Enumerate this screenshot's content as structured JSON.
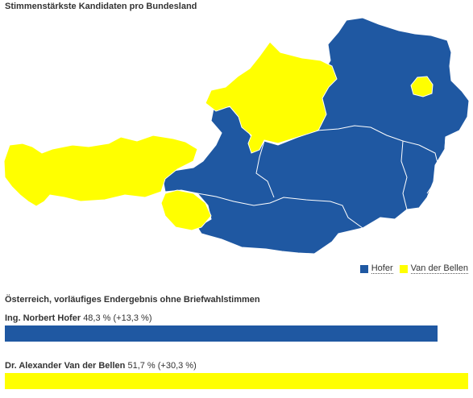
{
  "header": {
    "title": "Stimmenstärkste Kandidaten pro Bundesland"
  },
  "colors": {
    "hofer": "#1f58a2",
    "van_der_bellen": "#ffff00",
    "border": "#ffffff"
  },
  "map": {
    "regions": [
      {
        "name": "Vorarlberg",
        "winner": "van_der_bellen"
      },
      {
        "name": "Tirol",
        "winner": "van_der_bellen"
      },
      {
        "name": "Osttirol",
        "winner": "van_der_bellen"
      },
      {
        "name": "Salzburg",
        "winner": "hofer"
      },
      {
        "name": "Oberösterreich",
        "winner": "van_der_bellen"
      },
      {
        "name": "Niederösterreich",
        "winner": "hofer"
      },
      {
        "name": "Wien",
        "winner": "van_der_bellen"
      },
      {
        "name": "Burgenland",
        "winner": "hofer"
      },
      {
        "name": "Steiermark",
        "winner": "hofer"
      },
      {
        "name": "Kärnten",
        "winner": "hofer"
      }
    ]
  },
  "legend": [
    {
      "label": "Hofer",
      "color": "#1f58a2"
    },
    {
      "label": "Van der Bellen",
      "color": "#ffff00"
    }
  ],
  "results": {
    "subtitle": "Österreich, vorläufiges Endergebnis ohne Briefwahlstimmen",
    "candidates": [
      {
        "name": "Ing. Norbert Hofer",
        "stats": "48,3 % (+13,3 %)",
        "percent": 48.3,
        "color": "#1f58a2"
      },
      {
        "name": "Dr. Alexander Van der Bellen",
        "stats": "51,7 % (+30,3 %)",
        "percent": 51.7,
        "color": "#ffff00"
      }
    ]
  }
}
